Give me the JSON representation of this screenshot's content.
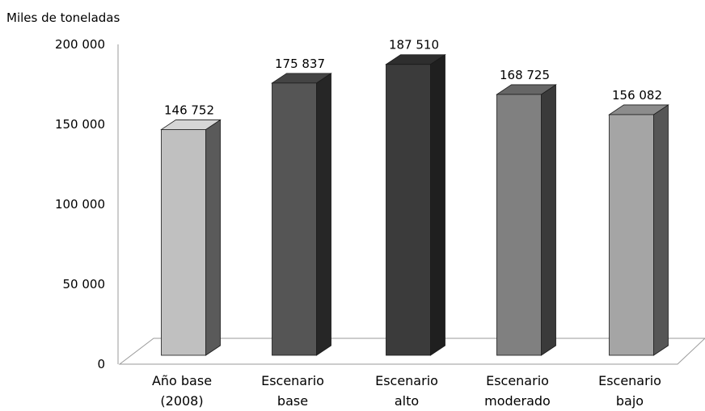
{
  "chart_data": {
    "type": "bar",
    "ylabel": "Miles de toneladas",
    "ylim": [
      0,
      200000
    ],
    "yticks": [
      {
        "value": 0,
        "label": "0"
      },
      {
        "value": 50000,
        "label": "50 000"
      },
      {
        "value": 100000,
        "label": "100 000"
      },
      {
        "value": 150000,
        "label": "150 000"
      },
      {
        "value": 200000,
        "label": "200 000"
      }
    ],
    "categories": [
      {
        "lines": [
          "Año base",
          "(2008)"
        ],
        "value": 146752,
        "value_label": "146 752",
        "front": "#c0c0c0",
        "side": "#5a5a5a",
        "top": "#d6d6d6"
      },
      {
        "lines": [
          "Escenario",
          "base"
        ],
        "value": 175837,
        "value_label": "175 837",
        "front": "#555555",
        "side": "#262626",
        "top": "#444444"
      },
      {
        "lines": [
          "Escenario",
          "alto"
        ],
        "value": 187510,
        "value_label": "187 510",
        "front": "#3b3b3b",
        "side": "#1f1f1f",
        "top": "#2e2e2e"
      },
      {
        "lines": [
          "Escenario",
          "moderado"
        ],
        "value": 168725,
        "value_label": "168 725",
        "front": "#808080",
        "side": "#3a3a3a",
        "top": "#666666"
      },
      {
        "lines": [
          "Escenario",
          "bajo"
        ],
        "value": 156082,
        "value_label": "156 082",
        "front": "#a5a5a5",
        "side": "#565656",
        "top": "#8c8c8c"
      }
    ],
    "grid": false,
    "legend": "none",
    "style": "3d"
  }
}
